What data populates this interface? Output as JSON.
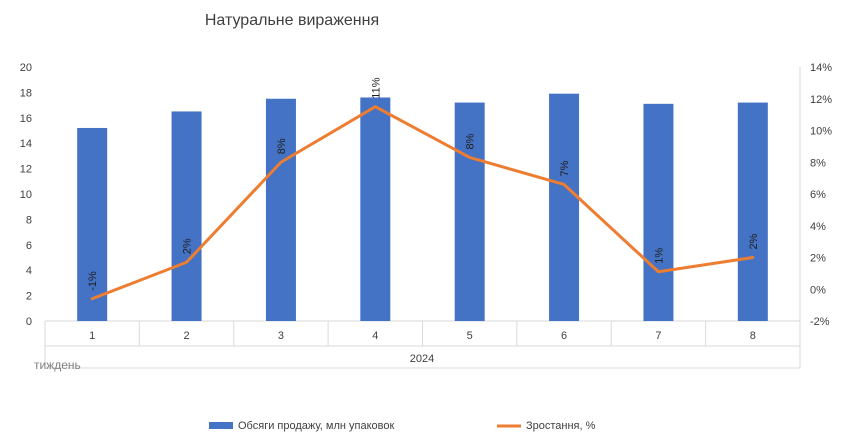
{
  "chart_data": {
    "type": "bar",
    "title": "Натуральне вираження",
    "categories": [
      "1",
      "2",
      "3",
      "4",
      "5",
      "6",
      "7",
      "8"
    ],
    "group_label": "2024",
    "corner_label": "тиждень",
    "y_left": {
      "ylim": [
        0,
        20
      ],
      "ticks": [
        0,
        2,
        4,
        6,
        8,
        10,
        12,
        14,
        16,
        18,
        20
      ]
    },
    "y_right": {
      "ylim": [
        -2,
        14
      ],
      "ticks": [
        "-2%",
        "0%",
        "2%",
        "4%",
        "6%",
        "8%",
        "10%",
        "12%",
        "14%"
      ]
    },
    "grid": false,
    "legend_position": "bottom",
    "series": [
      {
        "name": "Обсяги продажу, млн упаковок",
        "type": "bar",
        "axis": "left",
        "color": "#4472C4",
        "values": [
          15.2,
          16.5,
          17.5,
          17.6,
          17.2,
          17.9,
          17.1,
          17.2
        ]
      },
      {
        "name": "Зростання, %",
        "type": "line",
        "axis": "right",
        "color": "#ED7D31",
        "values": [
          -0.6,
          1.7,
          8.0,
          11.5,
          8.3,
          6.6,
          1.1,
          2.0
        ],
        "labels": [
          "-1%",
          "2%",
          "8%",
          "11%",
          "8%",
          "7%",
          "1%",
          "2%"
        ]
      }
    ]
  }
}
